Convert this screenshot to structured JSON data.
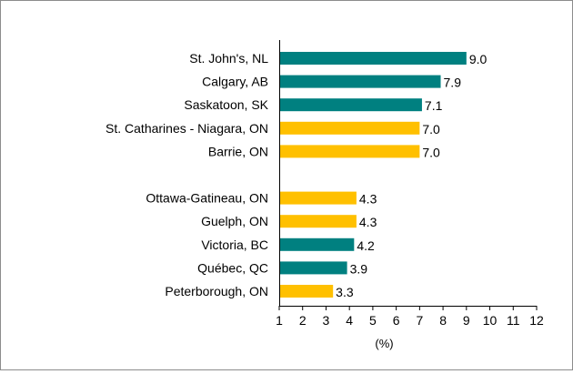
{
  "chart_data": {
    "type": "bar",
    "orientation": "horizontal",
    "categories": [
      "St. John's, NL",
      "Calgary, AB",
      "Saskatoon, SK",
      "St. Catharines - Niagara, ON",
      "Barrie, ON",
      "",
      "Ottawa-Gatineau, ON",
      "Guelph, ON",
      "Victoria, BC",
      "Québec, QC",
      "Peterborough, ON"
    ],
    "values": [
      9.0,
      7.9,
      7.1,
      7.0,
      7.0,
      null,
      4.3,
      4.3,
      4.2,
      3.9,
      3.3
    ],
    "value_labels": [
      "9.0",
      "7.9",
      "7.1",
      "7.0",
      "7.0",
      "",
      "4.3",
      "4.3",
      "4.2",
      "3.9",
      "3.3"
    ],
    "bar_color_keys": [
      "teal",
      "teal",
      "teal",
      "gold",
      "gold",
      null,
      "gold",
      "gold",
      "teal",
      "teal",
      "gold"
    ],
    "colors": {
      "teal": "#008080",
      "gold": "#FFC000"
    },
    "xlabel": "(%)",
    "ylabel": "",
    "xlim": [
      1,
      12
    ],
    "xticks": [
      1,
      2,
      3,
      4,
      5,
      6,
      7,
      8,
      9,
      10,
      11,
      12
    ],
    "grid": false,
    "legend": "none"
  }
}
